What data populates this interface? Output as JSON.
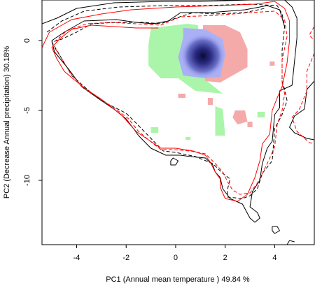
{
  "chart_data": {
    "type": "heatmap",
    "xlabel": "PC1 (Annual mean temperature ) 49.84 %",
    "ylabel": "PC2 (Decrease Annual precipitation) 30.18%",
    "xlim": [
      -5.4,
      5.6
    ],
    "ylim": [
      -14.6,
      2.9
    ],
    "x_ticks": [
      -4,
      -2,
      0,
      2,
      4
    ],
    "y_ticks": [
      0,
      -5,
      -10
    ],
    "grid": false,
    "colors": {
      "green": "#aaf5aa",
      "red": "#f5aaaa",
      "blue": "#aab0f5",
      "density_dark": "#0a0a3a",
      "contour_black": "#000000",
      "contour_red": "#ff0000"
    },
    "regions": [
      {
        "class": "green",
        "polygon": [
          [
            -1.0,
            0.9
          ],
          [
            0.5,
            1.2
          ],
          [
            0.9,
            1.1
          ],
          [
            1.0,
            -1.2
          ],
          [
            1.2,
            -2.8
          ],
          [
            1.9,
            -3.8
          ],
          [
            0.8,
            -3.6
          ],
          [
            0.1,
            -2.7
          ],
          [
            -0.6,
            -2.7
          ],
          [
            -1.1,
            -1.8
          ],
          [
            -1.1,
            -0.3
          ]
        ]
      },
      {
        "class": "red",
        "polygon": [
          [
            1.1,
            1.1
          ],
          [
            2.0,
            1.1
          ],
          [
            2.6,
            0.6
          ],
          [
            2.9,
            -0.6
          ],
          [
            2.9,
            -1.9
          ],
          [
            2.4,
            -2.4
          ],
          [
            1.8,
            -3.0
          ],
          [
            1.2,
            -2.9
          ],
          [
            1.1,
            -1.5
          ]
        ]
      },
      {
        "class": "blue",
        "polygon": [
          [
            0.3,
            0.9
          ],
          [
            1.2,
            0.8
          ],
          [
            1.9,
            0.1
          ],
          [
            2.0,
            -1.0
          ],
          [
            1.8,
            -2.6
          ],
          [
            1.2,
            -2.7
          ],
          [
            0.3,
            -2.5
          ],
          [
            0.1,
            -1.2
          ],
          [
            0.3,
            0.2
          ]
        ]
      },
      {
        "class": "green",
        "polygon": [
          [
            1.6,
            -4.7
          ],
          [
            1.9,
            -4.9
          ],
          [
            2.0,
            -6.8
          ],
          [
            1.6,
            -6.8
          ],
          [
            1.6,
            -5.8
          ]
        ]
      },
      {
        "class": "green",
        "polygon": [
          [
            -1.0,
            -6.2
          ],
          [
            -0.7,
            -6.2
          ],
          [
            -0.7,
            -6.6
          ],
          [
            -1.0,
            -6.6
          ]
        ]
      },
      {
        "class": "green",
        "polygon": [
          [
            0.4,
            -6.9
          ],
          [
            0.6,
            -6.9
          ],
          [
            0.6,
            -7.1
          ],
          [
            0.4,
            -7.1
          ]
        ]
      },
      {
        "class": "green",
        "polygon": [
          [
            3.3,
            -5.1
          ],
          [
            3.6,
            -5.1
          ],
          [
            3.6,
            -5.5
          ],
          [
            3.3,
            -5.5
          ]
        ]
      },
      {
        "class": "red",
        "polygon": [
          [
            2.4,
            -5.0
          ],
          [
            2.8,
            -5.0
          ],
          [
            2.9,
            -5.8
          ],
          [
            2.5,
            -6.0
          ],
          [
            2.3,
            -5.5
          ]
        ]
      },
      {
        "class": "red",
        "polygon": [
          [
            2.9,
            -5.8
          ],
          [
            3.1,
            -5.8
          ],
          [
            3.1,
            -6.2
          ],
          [
            2.9,
            -6.2
          ]
        ]
      },
      {
        "class": "red",
        "polygon": [
          [
            1.3,
            -4.1
          ],
          [
            1.5,
            -4.1
          ],
          [
            1.5,
            -4.6
          ],
          [
            1.3,
            -4.6
          ]
        ]
      },
      {
        "class": "red",
        "polygon": [
          [
            0.1,
            -3.8
          ],
          [
            0.4,
            -3.8
          ],
          [
            0.4,
            -4.1
          ],
          [
            0.1,
            -4.1
          ]
        ]
      },
      {
        "class": "red",
        "polygon": [
          [
            3.8,
            -1.5
          ],
          [
            4.0,
            -1.5
          ],
          [
            4.0,
            -1.8
          ],
          [
            3.8,
            -1.8
          ]
        ]
      }
    ],
    "density_peak": {
      "x": 1.1,
      "y": -1.1,
      "rx": 0.9,
      "ry": 1.6
    },
    "contours": [
      {
        "color": "black",
        "dash": "solid",
        "points": [
          [
            -5.4,
            1.2
          ],
          [
            -4.8,
            1.6
          ],
          [
            -4.0,
            2.3
          ],
          [
            -2.5,
            2.7
          ],
          [
            -0.5,
            2.8
          ],
          [
            1.0,
            2.8
          ],
          [
            3.0,
            2.9
          ],
          [
            4.4,
            2.9
          ],
          [
            4.7,
            2.4
          ],
          [
            4.9,
            1.6
          ],
          [
            4.9,
            0.2
          ],
          [
            4.8,
            -1.5
          ],
          [
            4.7,
            -3.2
          ],
          [
            4.2,
            -3.6
          ],
          [
            4.2,
            -4.8
          ],
          [
            4.0,
            -5.3
          ],
          [
            3.9,
            -7.2
          ],
          [
            3.7,
            -7.7
          ],
          [
            3.5,
            -8.8
          ],
          [
            3.4,
            -10.0
          ],
          [
            3.1,
            -10.8
          ],
          [
            3.0,
            -11.9
          ],
          [
            3.3,
            -12.3
          ],
          [
            3.4,
            -12.7
          ],
          [
            3.2,
            -13.0
          ],
          [
            3.0,
            -12.7
          ],
          [
            2.7,
            -11.7
          ],
          [
            2.2,
            -11.3
          ],
          [
            1.9,
            -10.6
          ],
          [
            1.8,
            -9.8
          ],
          [
            1.6,
            -9.4
          ],
          [
            1.5,
            -8.9
          ],
          [
            1.2,
            -8.4
          ],
          [
            0.6,
            -8.3
          ],
          [
            0.2,
            -8.2
          ],
          [
            -0.4,
            -8.2
          ],
          [
            -1.0,
            -7.7
          ],
          [
            -1.5,
            -6.8
          ],
          [
            -1.7,
            -6.3
          ],
          [
            -2.0,
            -5.6
          ],
          [
            -2.5,
            -4.9
          ],
          [
            -3.0,
            -4.3
          ],
          [
            -3.8,
            -3.3
          ],
          [
            -4.3,
            -2.1
          ],
          [
            -4.9,
            -0.8
          ],
          [
            -5.0,
            0.0
          ],
          [
            -4.5,
            0.6
          ],
          [
            -3.7,
            1.4
          ],
          [
            -2.4,
            1.5
          ],
          [
            -1.6,
            1.3
          ],
          [
            -0.9,
            1.2
          ],
          [
            -0.3,
            1.4
          ],
          [
            0.2,
            2.0
          ],
          [
            1.4,
            2.0
          ],
          [
            2.8,
            2.2
          ],
          [
            3.7,
            2.5
          ],
          [
            4.2,
            2.2
          ],
          [
            4.4,
            1.0
          ]
        ]
      },
      {
        "color": "black",
        "dash": "dashed",
        "points": [
          [
            -5.2,
            0.6
          ],
          [
            -4.6,
            1.4
          ],
          [
            -3.7,
            2.1
          ],
          [
            -2.3,
            2.4
          ],
          [
            -0.4,
            2.5
          ],
          [
            1.2,
            2.5
          ],
          [
            3.0,
            2.6
          ],
          [
            4.1,
            2.5
          ],
          [
            4.3,
            1.9
          ],
          [
            4.4,
            1.0
          ],
          [
            4.3,
            -0.7
          ],
          [
            4.3,
            -2.9
          ],
          [
            4.4,
            -3.5
          ],
          [
            4.5,
            -4.3
          ],
          [
            4.3,
            -5.3
          ],
          [
            4.0,
            -6.3
          ],
          [
            3.9,
            -8.6
          ],
          [
            3.5,
            -9.5
          ],
          [
            3.3,
            -10.6
          ],
          [
            3.0,
            -11.1
          ],
          [
            2.7,
            -11.3
          ],
          [
            2.1,
            -11.2
          ],
          [
            2.1,
            -10.6
          ],
          [
            2.2,
            -9.9
          ],
          [
            1.9,
            -9.5
          ],
          [
            1.5,
            -8.8
          ],
          [
            0.8,
            -8.3
          ],
          [
            0.0,
            -8.0
          ],
          [
            -0.5,
            -7.9
          ],
          [
            -1.0,
            -7.0
          ],
          [
            -1.6,
            -5.9
          ],
          [
            -2.0,
            -5.2
          ],
          [
            -2.9,
            -4.4
          ],
          [
            -3.5,
            -3.6
          ],
          [
            -4.2,
            -2.5
          ],
          [
            -4.6,
            -1.3
          ],
          [
            -5.0,
            -0.1
          ],
          [
            -4.6,
            0.1
          ],
          [
            -4.0,
            0.6
          ],
          [
            -3.4,
            1.2
          ],
          [
            -2.4,
            1.3
          ],
          [
            -1.3,
            1.3
          ],
          [
            -0.6,
            1.2
          ],
          [
            0.0,
            1.6
          ],
          [
            0.7,
            2.0
          ],
          [
            1.6,
            1.9
          ],
          [
            2.8,
            2.0
          ],
          [
            3.6,
            2.3
          ]
        ]
      },
      {
        "color": "red",
        "dash": "solid",
        "points": [
          [
            -5.4,
            -0.5
          ],
          [
            -5.1,
            0.6
          ],
          [
            -4.2,
            1.5
          ],
          [
            -3.0,
            1.9
          ],
          [
            -1.8,
            2.2
          ],
          [
            0.0,
            2.4
          ],
          [
            1.8,
            2.5
          ],
          [
            3.2,
            2.6
          ],
          [
            4.0,
            2.8
          ],
          [
            4.4,
            2.3
          ],
          [
            4.6,
            1.4
          ],
          [
            4.6,
            0.0
          ],
          [
            4.5,
            -1.6
          ],
          [
            4.3,
            -3.3
          ],
          [
            4.1,
            -4.1
          ],
          [
            3.9,
            -5.0
          ],
          [
            3.8,
            -6.7
          ],
          [
            3.5,
            -7.4
          ],
          [
            3.4,
            -8.6
          ],
          [
            3.2,
            -9.8
          ],
          [
            2.9,
            -11.0
          ],
          [
            2.5,
            -11.5
          ],
          [
            2.0,
            -11.3
          ],
          [
            1.8,
            -10.5
          ],
          [
            1.8,
            -9.9
          ],
          [
            1.6,
            -9.4
          ],
          [
            1.4,
            -8.7
          ],
          [
            1.2,
            -8.2
          ],
          [
            0.7,
            -7.9
          ],
          [
            0.0,
            -7.7
          ],
          [
            -0.6,
            -7.7
          ],
          [
            -1.1,
            -7.1
          ],
          [
            -1.6,
            -6.5
          ],
          [
            -1.9,
            -5.9
          ],
          [
            -2.2,
            -5.3
          ],
          [
            -3.0,
            -4.2
          ],
          [
            -3.6,
            -3.5
          ],
          [
            -4.1,
            -2.8
          ],
          [
            -4.5,
            -2.2
          ],
          [
            -4.8,
            -1.3
          ],
          [
            -5.0,
            -0.5
          ],
          [
            -4.7,
            0.1
          ],
          [
            -4.2,
            0.8
          ],
          [
            -3.4,
            1.1
          ],
          [
            -2.5,
            1.0
          ],
          [
            -1.6,
            0.9
          ],
          [
            -0.7,
            0.9
          ]
        ]
      },
      {
        "color": "red",
        "dash": "dashed",
        "points": [
          [
            -4.9,
            -0.1
          ],
          [
            -4.4,
            0.7
          ],
          [
            -3.6,
            1.2
          ],
          [
            -2.6,
            1.3
          ],
          [
            -1.6,
            1.2
          ],
          [
            -0.6,
            1.1
          ],
          [
            0.2,
            1.7
          ],
          [
            1.6,
            1.8
          ],
          [
            3.0,
            2.0
          ],
          [
            4.0,
            2.1
          ],
          [
            4.4,
            1.5
          ],
          [
            4.5,
            0.3
          ],
          [
            4.3,
            -1.4
          ],
          [
            4.3,
            -3.0
          ],
          [
            4.4,
            -3.8
          ],
          [
            4.3,
            -5.0
          ],
          [
            4.1,
            -6.0
          ],
          [
            4.0,
            -7.6
          ],
          [
            3.7,
            -8.8
          ],
          [
            3.3,
            -10.2
          ],
          [
            3.0,
            -10.9
          ],
          [
            2.6,
            -11.0
          ],
          [
            2.3,
            -10.7
          ],
          [
            2.1,
            -10.1
          ],
          [
            1.9,
            -9.4
          ],
          [
            1.6,
            -8.8
          ],
          [
            1.2,
            -8.1
          ],
          [
            0.6,
            -7.9
          ],
          [
            -0.1,
            -7.8
          ],
          [
            -0.6,
            -7.8
          ],
          [
            -1.1,
            -7.1
          ],
          [
            -1.5,
            -6.5
          ],
          [
            -1.9,
            -5.6
          ],
          [
            -2.5,
            -4.8
          ],
          [
            -3.2,
            -4.0
          ],
          [
            -3.8,
            -3.3
          ],
          [
            -4.3,
            -2.2
          ],
          [
            -4.6,
            -1.3
          ],
          [
            -4.9,
            -0.5
          ]
        ]
      },
      {
        "color": "black",
        "dash": "solid",
        "points": [
          [
            -0.2,
            -8.6
          ],
          [
            -0.1,
            -8.4
          ],
          [
            0.1,
            -8.6
          ],
          [
            0.0,
            -8.9
          ],
          [
            -0.2,
            -8.9
          ],
          [
            -0.2,
            -8.6
          ]
        ]
      },
      {
        "color": "black",
        "dash": "solid",
        "points": [
          [
            3.9,
            -13.3
          ],
          [
            4.1,
            -13.3
          ],
          [
            4.2,
            -13.6
          ],
          [
            4.0,
            -13.8
          ],
          [
            3.9,
            -13.6
          ],
          [
            3.9,
            -13.3
          ]
        ]
      },
      {
        "color": "black",
        "dash": "solid",
        "points": [
          [
            4.5,
            -14.6
          ],
          [
            4.6,
            -14.3
          ],
          [
            4.8,
            -14.4
          ]
        ]
      },
      {
        "color": "black",
        "dash": "solid",
        "points": [
          [
            5.6,
            -2.9
          ],
          [
            5.3,
            -3.5
          ],
          [
            5.2,
            -4.9
          ],
          [
            4.8,
            -5.4
          ],
          [
            4.6,
            -6.2
          ],
          [
            4.8,
            -6.6
          ],
          [
            5.3,
            -7.0
          ],
          [
            5.6,
            -7.1
          ]
        ]
      },
      {
        "color": "red",
        "dash": "dashed",
        "points": [
          [
            5.6,
            -0.9
          ],
          [
            5.3,
            -2.2
          ],
          [
            5.3,
            -3.6
          ],
          [
            5.0,
            -4.9
          ],
          [
            4.7,
            -5.5
          ],
          [
            4.9,
            -6.5
          ],
          [
            5.4,
            -7.3
          ],
          [
            5.6,
            -7.4
          ]
        ]
      },
      {
        "color": "red",
        "dash": "dashed",
        "points": [
          [
            5.6,
            1.0
          ],
          [
            5.4,
            0.4
          ],
          [
            5.6,
            0.0
          ]
        ]
      }
    ]
  }
}
